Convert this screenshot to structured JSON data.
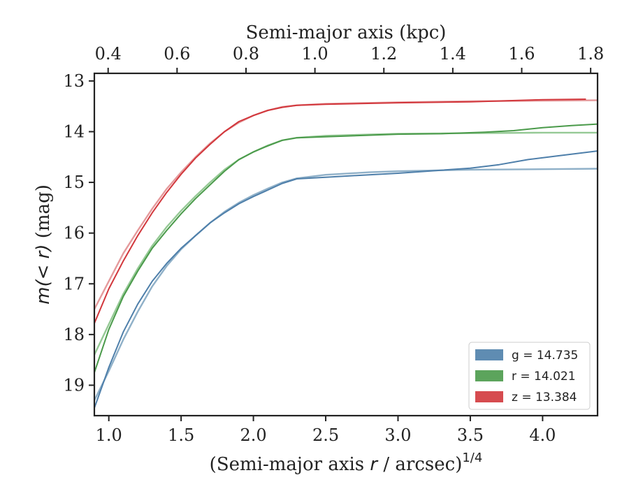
{
  "chart_data": {
    "type": "line",
    "xlabel_main": "(Semi-major axis ",
    "xlabel_var": "r",
    "xlabel_tail": " / arcsec)",
    "xlabel_sup": "1/4",
    "ylabel_pre": "m",
    "ylabel_math": "(< r)",
    "ylabel_post": " (mag)",
    "top_xlabel": "Semi-major axis (kpc)",
    "xlim": [
      0.9,
      4.38
    ],
    "ylim": [
      19.6,
      12.85
    ],
    "top_xlim": [
      0.36,
      1.82
    ],
    "xticks": [
      "1.0",
      "1.5",
      "2.0",
      "2.5",
      "3.0",
      "3.5",
      "4.0"
    ],
    "yticks": [
      "13",
      "14",
      "15",
      "16",
      "17",
      "18",
      "19"
    ],
    "top_xticks": [
      "0.4",
      "0.6",
      "0.8",
      "1.0",
      "1.2",
      "1.4",
      "1.6",
      "1.8"
    ],
    "legend_position": "lower-right",
    "series": [
      {
        "name": "g",
        "legend_label": "g = 14.735",
        "color": "#4e7faa",
        "fit_color": "#8fb0c8",
        "data": [
          [
            0.9,
            19.45
          ],
          [
            1.0,
            18.65
          ],
          [
            1.1,
            17.95
          ],
          [
            1.2,
            17.4
          ],
          [
            1.3,
            16.95
          ],
          [
            1.4,
            16.6
          ],
          [
            1.5,
            16.3
          ],
          [
            1.6,
            16.05
          ],
          [
            1.7,
            15.8
          ],
          [
            1.8,
            15.6
          ],
          [
            1.9,
            15.42
          ],
          [
            2.0,
            15.28
          ],
          [
            2.1,
            15.15
          ],
          [
            2.2,
            15.02
          ],
          [
            2.3,
            14.93
          ],
          [
            2.5,
            14.9
          ],
          [
            2.8,
            14.85
          ],
          [
            3.0,
            14.82
          ],
          [
            3.2,
            14.78
          ],
          [
            3.5,
            14.72
          ],
          [
            3.7,
            14.65
          ],
          [
            3.9,
            14.55
          ],
          [
            4.1,
            14.48
          ],
          [
            4.38,
            14.38
          ]
        ],
        "fit": [
          [
            0.9,
            19.3
          ],
          [
            1.0,
            18.72
          ],
          [
            1.1,
            18.1
          ],
          [
            1.2,
            17.55
          ],
          [
            1.3,
            17.05
          ],
          [
            1.4,
            16.65
          ],
          [
            1.5,
            16.32
          ],
          [
            1.6,
            16.05
          ],
          [
            1.7,
            15.8
          ],
          [
            1.8,
            15.58
          ],
          [
            1.9,
            15.4
          ],
          [
            2.0,
            15.25
          ],
          [
            2.1,
            15.12
          ],
          [
            2.2,
            15.0
          ],
          [
            2.3,
            14.92
          ],
          [
            2.5,
            14.85
          ],
          [
            2.8,
            14.8
          ],
          [
            3.0,
            14.78
          ],
          [
            3.5,
            14.75
          ],
          [
            4.0,
            14.74
          ],
          [
            4.38,
            14.73
          ]
        ]
      },
      {
        "name": "r",
        "legend_label": "r = 14.021",
        "color": "#4a9a4a",
        "fit_color": "#95c995",
        "data": [
          [
            0.9,
            18.75
          ],
          [
            1.0,
            17.9
          ],
          [
            1.1,
            17.25
          ],
          [
            1.2,
            16.75
          ],
          [
            1.3,
            16.3
          ],
          [
            1.4,
            15.95
          ],
          [
            1.5,
            15.62
          ],
          [
            1.6,
            15.32
          ],
          [
            1.7,
            15.05
          ],
          [
            1.8,
            14.78
          ],
          [
            1.9,
            14.55
          ],
          [
            2.0,
            14.4
          ],
          [
            2.1,
            14.28
          ],
          [
            2.2,
            14.17
          ],
          [
            2.3,
            14.12
          ],
          [
            2.5,
            14.1
          ],
          [
            3.0,
            14.05
          ],
          [
            3.3,
            14.04
          ],
          [
            3.6,
            14.01
          ],
          [
            3.8,
            13.98
          ],
          [
            4.0,
            13.92
          ],
          [
            4.2,
            13.88
          ],
          [
            4.38,
            13.85
          ]
        ],
        "fit": [
          [
            0.9,
            18.4
          ],
          [
            1.0,
            17.8
          ],
          [
            1.1,
            17.2
          ],
          [
            1.2,
            16.7
          ],
          [
            1.3,
            16.25
          ],
          [
            1.4,
            15.88
          ],
          [
            1.5,
            15.56
          ],
          [
            1.6,
            15.27
          ],
          [
            1.7,
            15.0
          ],
          [
            1.8,
            14.75
          ],
          [
            1.9,
            14.55
          ],
          [
            2.0,
            14.4
          ],
          [
            2.1,
            14.27
          ],
          [
            2.2,
            14.17
          ],
          [
            2.3,
            14.12
          ],
          [
            2.5,
            14.08
          ],
          [
            3.0,
            14.04
          ],
          [
            3.5,
            14.03
          ],
          [
            4.0,
            14.02
          ],
          [
            4.38,
            14.02
          ]
        ]
      },
      {
        "name": "z",
        "legend_label": "z = 13.384",
        "color": "#d2373c",
        "fit_color": "#e59a9c",
        "data": [
          [
            0.9,
            17.78
          ],
          [
            1.0,
            17.1
          ],
          [
            1.1,
            16.55
          ],
          [
            1.2,
            16.05
          ],
          [
            1.3,
            15.6
          ],
          [
            1.4,
            15.2
          ],
          [
            1.5,
            14.84
          ],
          [
            1.6,
            14.52
          ],
          [
            1.7,
            14.25
          ],
          [
            1.8,
            14.0
          ],
          [
            1.9,
            13.8
          ],
          [
            2.0,
            13.68
          ],
          [
            2.1,
            13.58
          ],
          [
            2.2,
            13.52
          ],
          [
            2.3,
            13.48
          ],
          [
            2.5,
            13.46
          ],
          [
            3.0,
            13.43
          ],
          [
            3.5,
            13.41
          ],
          [
            4.0,
            13.37
          ],
          [
            4.3,
            13.36
          ]
        ],
        "fit": [
          [
            0.9,
            17.5
          ],
          [
            1.0,
            16.95
          ],
          [
            1.1,
            16.4
          ],
          [
            1.2,
            15.95
          ],
          [
            1.3,
            15.52
          ],
          [
            1.4,
            15.13
          ],
          [
            1.5,
            14.8
          ],
          [
            1.6,
            14.5
          ],
          [
            1.7,
            14.23
          ],
          [
            1.8,
            14.0
          ],
          [
            1.9,
            13.82
          ],
          [
            2.0,
            13.68
          ],
          [
            2.1,
            13.58
          ],
          [
            2.2,
            13.51
          ],
          [
            2.3,
            13.48
          ],
          [
            2.5,
            13.45
          ],
          [
            3.0,
            13.42
          ],
          [
            3.5,
            13.4
          ],
          [
            4.0,
            13.39
          ],
          [
            4.38,
            13.38
          ]
        ]
      }
    ]
  }
}
